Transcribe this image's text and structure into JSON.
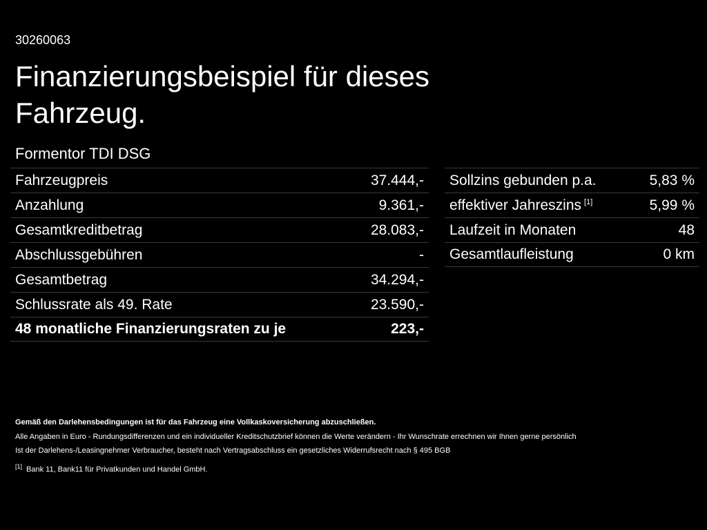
{
  "header": {
    "id": "30260063",
    "title": "Finanzierungsbeispiel für dieses Fahrzeug.",
    "model": "Formentor TDI DSG"
  },
  "left_table": {
    "rows": [
      {
        "label": "Fahrzeugpreis",
        "value": "37.444,-"
      },
      {
        "label": "Anzahlung",
        "value": "9.361,-"
      },
      {
        "label": "Gesamtkreditbetrag",
        "value": "28.083,-"
      },
      {
        "label": "Abschlussgebühren",
        "value": "-"
      },
      {
        "label": "Gesamtbetrag",
        "value": "34.294,-"
      },
      {
        "label": "Schlussrate als 49. Rate",
        "value": "23.590,-"
      },
      {
        "label": "48 monatliche Finanzierungsraten zu je",
        "value": "223,-"
      }
    ]
  },
  "right_table": {
    "rows": [
      {
        "label": "Sollzins gebunden p.a.",
        "value": "5,83 %"
      },
      {
        "label": "effektiver Jahreszins",
        "ref": "[1]",
        "value": "5,99 %"
      },
      {
        "label": "Laufzeit in Monaten",
        "value": "48"
      },
      {
        "label": "Gesamtlaufleistung",
        "value": "0 km"
      }
    ]
  },
  "notes": {
    "insurance": "Gemäß den Darlehensbedingungen ist für das Fahrzeug eine Vollkaskoversicherung abzuschließen.",
    "lines": [
      "Alle Angaben in Euro - Rundungsdifferenzen und ein individueller Kreditschutzbrief können die Werte verändern - Ihr Wunschrate errechnen wir Ihnen gerne persönlich",
      "Ist der Darlehens-/Leasingnehmer Verbraucher, besteht nach Vertragsabschluss ein gesetzliches Widerrufsrecht nach § 495 BGB"
    ],
    "footnote": {
      "ref": "[1]",
      "text": "Bank 11, Bank11 für Privatkunden und Handel GmbH."
    }
  }
}
